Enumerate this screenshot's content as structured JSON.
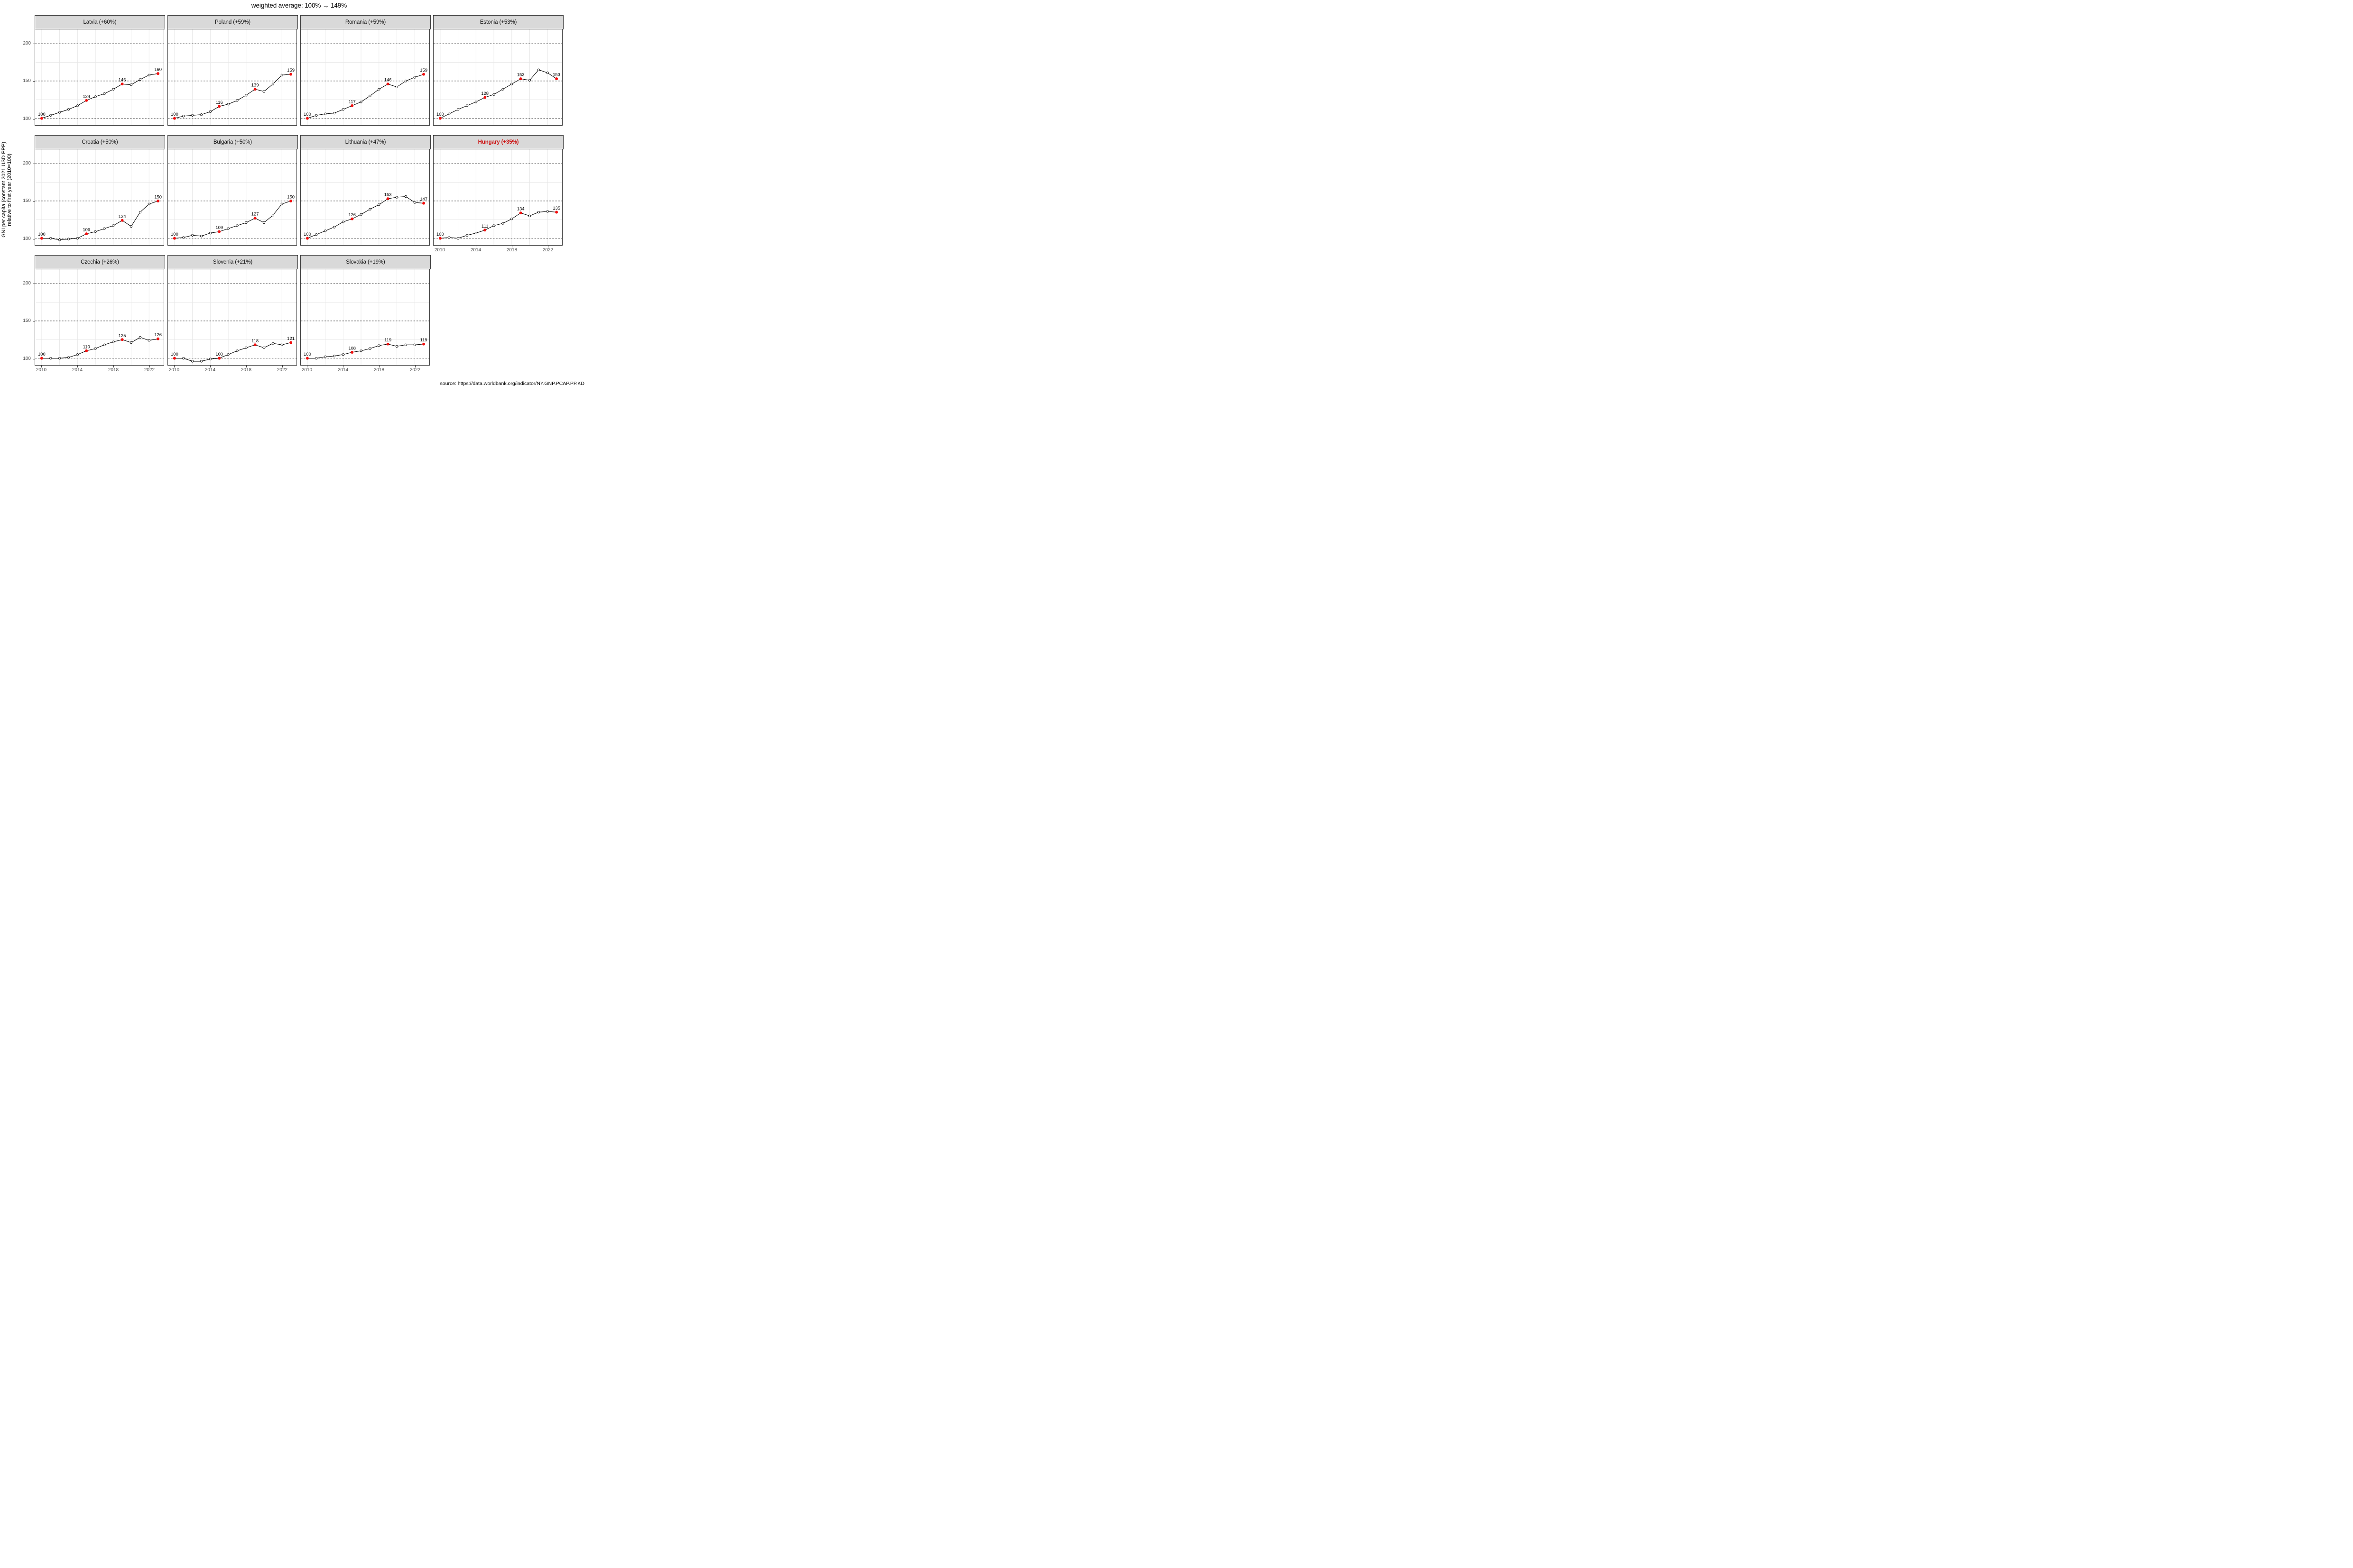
{
  "page": {
    "title": "weighted average: 100% → 149%",
    "source": "source: https://data.worldbank.org/indicator/NY.GNP.PCAP.PP.KD"
  },
  "chart_data": {
    "type": "line",
    "title": "weighted average: 100% → 149%",
    "ylabel_lines": [
      "GNI per capita (constant 2021 USD PPP)",
      "relative to first year (2010=100)"
    ],
    "x": [
      2010,
      2011,
      2012,
      2013,
      2014,
      2015,
      2016,
      2017,
      2018,
      2019,
      2020,
      2021,
      2022,
      2023
    ],
    "x_ticks": [
      2010,
      2014,
      2018,
      2022
    ],
    "y_ticks": [
      100,
      150,
      200
    ],
    "y_minor": [
      125,
      175
    ],
    "ylim": [
      91,
      219
    ],
    "grid": true,
    "legend": false,
    "highlight_years": [
      2010,
      2015,
      2019,
      2023
    ],
    "labeled_values_note": "red dots labeled at 2010, 2015, 2019 and 2023",
    "colors": {
      "line": "#000000",
      "marker_open_fill": "#ffffff",
      "highlight_dot": "#f20d0d",
      "highlight_title": "#cc1111",
      "panel_header_bg": "#d9d9d9",
      "axis_text": "#4d4d4d",
      "minor_grid": "#e6e6e6",
      "dashed_grid": "#000000"
    },
    "series": [
      {
        "name": "latvia",
        "label": "Latvia (+60%)",
        "highlighted": false,
        "values": [
          100,
          104,
          108,
          112,
          117,
          124,
          129,
          133,
          139,
          146,
          145,
          152,
          158,
          160
        ]
      },
      {
        "name": "poland",
        "label": "Poland (+59%)",
        "highlighted": false,
        "values": [
          100,
          103,
          104,
          105,
          109,
          116,
          119,
          124,
          131,
          139,
          136,
          146,
          158,
          159
        ]
      },
      {
        "name": "romania",
        "label": "Romania (+59%)",
        "highlighted": false,
        "values": [
          100,
          104,
          106,
          107,
          112,
          117,
          122,
          130,
          139,
          146,
          142,
          150,
          155,
          159
        ]
      },
      {
        "name": "estonia",
        "label": "Estonia (+53%)",
        "highlighted": false,
        "values": [
          100,
          106,
          112,
          117,
          122,
          128,
          132,
          139,
          146,
          153,
          151,
          165,
          161,
          153
        ]
      },
      {
        "name": "croatia",
        "label": "Croatia (+50%)",
        "highlighted": false,
        "values": [
          100,
          100,
          98,
          99,
          100,
          106,
          109,
          113,
          117,
          124,
          116,
          135,
          146,
          150
        ]
      },
      {
        "name": "bulgaria",
        "label": "Bulgaria (+50%)",
        "highlighted": false,
        "values": [
          100,
          101,
          104,
          103,
          107,
          109,
          113,
          117,
          121,
          127,
          121,
          131,
          146,
          150
        ]
      },
      {
        "name": "lithuania",
        "label": "Lithuania (+47%)",
        "highlighted": false,
        "values": [
          100,
          105,
          110,
          115,
          122,
          126,
          132,
          139,
          145,
          153,
          155,
          156,
          148,
          147
        ]
      },
      {
        "name": "hungary",
        "label": "Hungary (+35%)",
        "highlighted": true,
        "values": [
          100,
          101,
          100,
          104,
          107,
          111,
          117,
          120,
          126,
          134,
          130,
          135,
          136,
          135
        ]
      },
      {
        "name": "czechia",
        "label": "Czechia (+26%)",
        "highlighted": false,
        "values": [
          100,
          100,
          100,
          101,
          105,
          110,
          113,
          118,
          122,
          125,
          121,
          128,
          124,
          126
        ]
      },
      {
        "name": "slovenia",
        "label": "Slovenia (+21%)",
        "highlighted": false,
        "values": [
          100,
          100,
          96,
          96,
          99,
          100,
          105,
          110,
          114,
          118,
          114,
          120,
          118,
          121
        ]
      },
      {
        "name": "slovakia",
        "label": "Slovakia (+19%)",
        "highlighted": false,
        "values": [
          100,
          100,
          102,
          103,
          105,
          108,
          110,
          113,
          117,
          119,
          116,
          118,
          118,
          119
        ]
      }
    ]
  }
}
